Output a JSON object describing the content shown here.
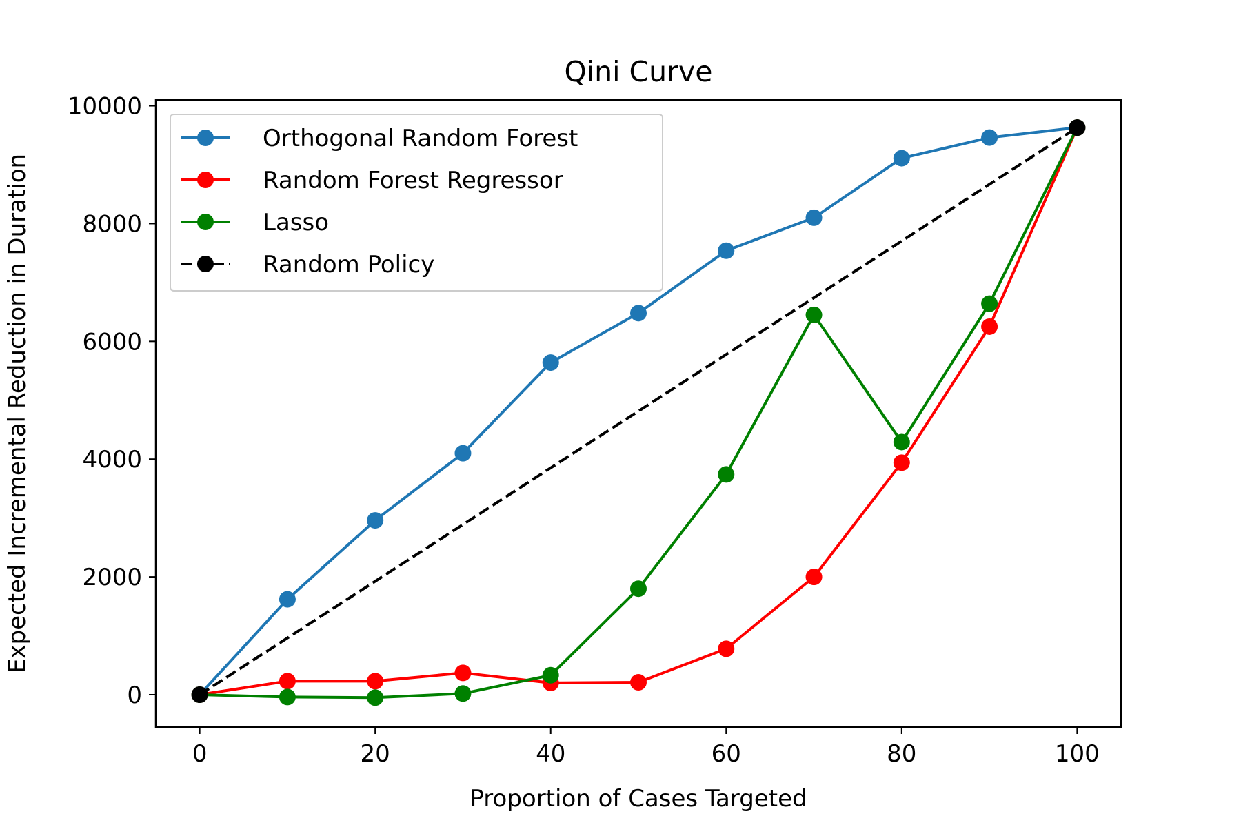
{
  "chart_data": {
    "type": "line",
    "title": "Qini Curve",
    "xlabel": "Proportion of Cases Targeted",
    "ylabel": "Expected Incremental Reduction in Duration",
    "xlim": [
      -5,
      105
    ],
    "ylim": [
      -550,
      10100
    ],
    "xticks": [
      0,
      20,
      40,
      60,
      80,
      100
    ],
    "yticks": [
      0,
      2000,
      4000,
      6000,
      8000,
      10000
    ],
    "xtick_labels": [
      "0",
      "20",
      "40",
      "60",
      "80",
      "100"
    ],
    "ytick_labels": [
      "0",
      "2000",
      "4000",
      "6000",
      "8000",
      "10000"
    ],
    "grid": false,
    "legend_position": "upper-left",
    "x": [
      0,
      10,
      20,
      30,
      40,
      50,
      60,
      70,
      80,
      90,
      100
    ],
    "series": [
      {
        "name": "Orthogonal Random Forest",
        "color": "#1f77b4",
        "dash": "solid",
        "values": [
          0,
          1620,
          2960,
          4100,
          5640,
          6480,
          7540,
          8100,
          9110,
          9460,
          9630
        ]
      },
      {
        "name": "Random Forest Regressor",
        "color": "#ff0000",
        "dash": "solid",
        "values": [
          0,
          230,
          230,
          370,
          200,
          210,
          780,
          2000,
          3940,
          6250,
          9630
        ]
      },
      {
        "name": "Lasso",
        "color": "#008000",
        "dash": "solid",
        "values": [
          0,
          -40,
          -50,
          20,
          330,
          1800,
          3740,
          6450,
          4290,
          6640,
          9630
        ]
      },
      {
        "name": "Random Policy",
        "color": "#000000",
        "dash": "dashed",
        "values": [
          0,
          963,
          1926,
          2889,
          3852,
          4815,
          5778,
          6741,
          7704,
          8667,
          9630
        ],
        "marker_indices": [
          0,
          10
        ]
      }
    ]
  }
}
